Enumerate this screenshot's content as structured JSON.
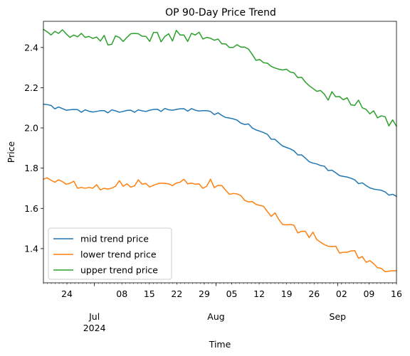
{
  "chart_data": {
    "type": "line",
    "title": "OP 90-Day Price Trend",
    "xlabel": "Time",
    "ylabel": "Price",
    "x_start": "2024-06-18",
    "xlim": [
      "2024-06-18",
      "2024-09-16"
    ],
    "ylim": [
      1.23,
      2.53
    ],
    "yticks": [
      "1.4",
      "1.6",
      "1.8",
      "2.0",
      "2.2",
      "2.4"
    ],
    "xticks_major": [
      {
        "date": "2024-07-01",
        "label": "Jul",
        "sublabel": "2024"
      },
      {
        "date": "2024-08-01",
        "label": "Aug",
        "sublabel": ""
      },
      {
        "date": "2024-09-01",
        "label": "Sep",
        "sublabel": ""
      }
    ],
    "xticks_minor": [
      {
        "date": "2024-06-24",
        "label": "24"
      },
      {
        "date": "2024-07-08",
        "label": "08"
      },
      {
        "date": "2024-07-15",
        "label": "15"
      },
      {
        "date": "2024-07-22",
        "label": "22"
      },
      {
        "date": "2024-07-29",
        "label": "29"
      },
      {
        "date": "2024-08-05",
        "label": "05"
      },
      {
        "date": "2024-08-12",
        "label": "12"
      },
      {
        "date": "2024-08-19",
        "label": "19"
      },
      {
        "date": "2024-08-26",
        "label": "26"
      },
      {
        "date": "2024-09-02",
        "label": "02"
      },
      {
        "date": "2024-09-09",
        "label": "09"
      },
      {
        "date": "2024-09-16",
        "label": "16"
      }
    ],
    "grid": false,
    "legend_position": "lower-left",
    "series": [
      {
        "name": "mid trend price",
        "color": "#1f77b4",
        "values": [
          2.118,
          2.116,
          2.112,
          2.095,
          2.104,
          2.096,
          2.088,
          2.09,
          2.092,
          2.091,
          2.078,
          2.09,
          2.083,
          2.079,
          2.082,
          2.086,
          2.086,
          2.075,
          2.09,
          2.085,
          2.078,
          2.082,
          2.087,
          2.088,
          2.078,
          2.09,
          2.085,
          2.082,
          2.088,
          2.092,
          2.093,
          2.082,
          2.097,
          2.09,
          2.088,
          2.092,
          2.095,
          2.096,
          2.083,
          2.096,
          2.088,
          2.084,
          2.086,
          2.086,
          2.082,
          2.066,
          2.075,
          2.062,
          2.052,
          2.049,
          2.045,
          2.039,
          2.024,
          2.017,
          2.02,
          2.0,
          1.99,
          1.984,
          1.977,
          1.968,
          1.944,
          1.943,
          1.926,
          1.91,
          1.903,
          1.896,
          1.886,
          1.866,
          1.866,
          1.85,
          1.832,
          1.825,
          1.821,
          1.813,
          1.81,
          1.788,
          1.79,
          1.777,
          1.763,
          1.759,
          1.756,
          1.75,
          1.742,
          1.723,
          1.727,
          1.713,
          1.702,
          1.696,
          1.693,
          1.69,
          1.682,
          1.666,
          1.67,
          1.66
        ]
      },
      {
        "name": "lower trend price",
        "color": "#ff7f0e",
        "values": [
          1.745,
          1.752,
          1.74,
          1.73,
          1.742,
          1.733,
          1.72,
          1.725,
          1.735,
          1.7,
          1.704,
          1.7,
          1.704,
          1.7,
          1.718,
          1.692,
          1.7,
          1.696,
          1.701,
          1.71,
          1.738,
          1.71,
          1.722,
          1.706,
          1.712,
          1.742,
          1.72,
          1.724,
          1.706,
          1.715,
          1.722,
          1.726,
          1.724,
          1.722,
          1.713,
          1.726,
          1.73,
          1.745,
          1.722,
          1.726,
          1.72,
          1.722,
          1.7,
          1.71,
          1.745,
          1.703,
          1.715,
          1.713,
          1.69,
          1.67,
          1.674,
          1.672,
          1.664,
          1.64,
          1.632,
          1.634,
          1.62,
          1.615,
          1.61,
          1.584,
          1.56,
          1.578,
          1.545,
          1.52,
          1.518,
          1.52,
          1.516,
          1.478,
          1.486,
          1.486,
          1.455,
          1.482,
          1.445,
          1.432,
          1.42,
          1.412,
          1.41,
          1.412,
          1.378,
          1.382,
          1.382,
          1.388,
          1.39,
          1.352,
          1.36,
          1.332,
          1.34,
          1.325,
          1.305,
          1.302,
          1.285,
          1.288,
          1.29,
          1.29
        ]
      },
      {
        "name": "upper trend price",
        "color": "#2ca02c",
        "values": [
          2.49,
          2.478,
          2.462,
          2.48,
          2.47,
          2.488,
          2.468,
          2.45,
          2.462,
          2.453,
          2.47,
          2.45,
          2.455,
          2.445,
          2.452,
          2.432,
          2.46,
          2.412,
          2.416,
          2.458,
          2.45,
          2.43,
          2.45,
          2.468,
          2.47,
          2.468,
          2.456,
          2.455,
          2.43,
          2.475,
          2.475,
          2.428,
          2.455,
          2.468,
          2.432,
          2.485,
          2.462,
          2.462,
          2.43,
          2.47,
          2.462,
          2.476,
          2.442,
          2.45,
          2.446,
          2.436,
          2.442,
          2.418,
          2.418,
          2.4,
          2.4,
          2.414,
          2.402,
          2.402,
          2.392,
          2.366,
          2.336,
          2.34,
          2.324,
          2.322,
          2.306,
          2.298,
          2.292,
          2.288,
          2.292,
          2.278,
          2.274,
          2.25,
          2.252,
          2.228,
          2.21,
          2.196,
          2.182,
          2.186,
          2.168,
          2.138,
          2.18,
          2.155,
          2.156,
          2.14,
          2.15,
          2.115,
          2.112,
          2.138,
          2.1,
          2.092,
          2.07,
          2.085,
          2.05,
          2.06,
          2.056,
          2.01,
          2.04,
          2.008
        ]
      }
    ]
  }
}
